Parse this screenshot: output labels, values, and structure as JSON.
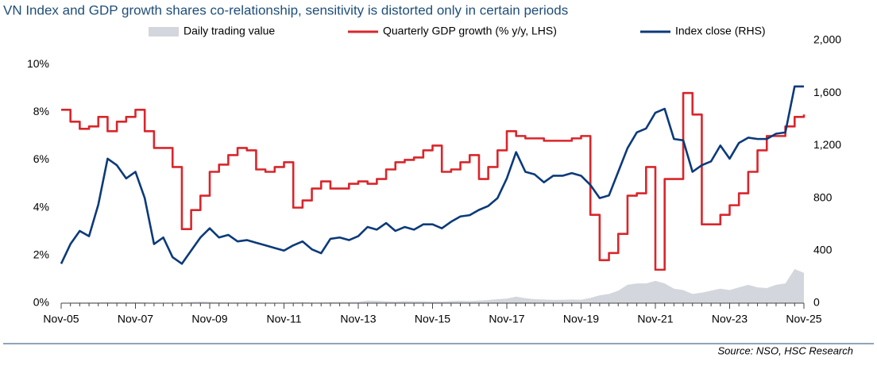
{
  "chart_data": {
    "type": "line",
    "title": "VN Index and GDP growth shares co-relationship, sensitivity is distorted only in certain periods",
    "source": "Source: NSO, HSC Research",
    "x": [
      "2005-11",
      "2006-02",
      "2006-05",
      "2006-08",
      "2006-11",
      "2007-02",
      "2007-05",
      "2007-08",
      "2007-11",
      "2008-02",
      "2008-05",
      "2008-08",
      "2008-11",
      "2009-02",
      "2009-05",
      "2009-08",
      "2009-11",
      "2010-02",
      "2010-05",
      "2010-08",
      "2010-11",
      "2011-02",
      "2011-05",
      "2011-08",
      "2011-11",
      "2012-02",
      "2012-05",
      "2012-08",
      "2012-11",
      "2013-02",
      "2013-05",
      "2013-08",
      "2013-11",
      "2014-02",
      "2014-05",
      "2014-08",
      "2014-11",
      "2015-02",
      "2015-05",
      "2015-08",
      "2015-11",
      "2016-02",
      "2016-05",
      "2016-08",
      "2016-11",
      "2017-02",
      "2017-05",
      "2017-08",
      "2017-11",
      "2018-02",
      "2018-05",
      "2018-08",
      "2018-11",
      "2019-02",
      "2019-05",
      "2019-08",
      "2019-11",
      "2020-02",
      "2020-05",
      "2020-08",
      "2020-11",
      "2021-02",
      "2021-05",
      "2021-08",
      "2021-11",
      "2022-02",
      "2022-05",
      "2022-08",
      "2022-11",
      "2023-02",
      "2023-05",
      "2023-08",
      "2023-11",
      "2024-02",
      "2024-05",
      "2024-08",
      "2024-11",
      "2025-02",
      "2025-05",
      "2025-08",
      "2025-11"
    ],
    "xlim": [
      "2005-11",
      "2025-11"
    ],
    "xticks": [
      {
        "value": "2005-11",
        "label": "Nov-05"
      },
      {
        "value": "2007-11",
        "label": "Nov-07"
      },
      {
        "value": "2009-11",
        "label": "Nov-09"
      },
      {
        "value": "2011-11",
        "label": "Nov-11"
      },
      {
        "value": "2013-11",
        "label": "Nov-13"
      },
      {
        "value": "2015-11",
        "label": "Nov-15"
      },
      {
        "value": "2017-11",
        "label": "Nov-17"
      },
      {
        "value": "2019-11",
        "label": "Nov-19"
      },
      {
        "value": "2021-11",
        "label": "Nov-21"
      },
      {
        "value": "2023-11",
        "label": "Nov-23"
      },
      {
        "value": "2025-11",
        "label": "Nov-25"
      }
    ],
    "ylim": [
      0,
      11
    ],
    "yticks": [
      {
        "value": 0,
        "label": "0%"
      },
      {
        "value": 2,
        "label": "2%"
      },
      {
        "value": 4,
        "label": "4%"
      },
      {
        "value": 6,
        "label": "6%"
      },
      {
        "value": 8,
        "label": "8%"
      },
      {
        "value": 10,
        "label": "10%"
      }
    ],
    "y2lim": [
      0,
      2000
    ],
    "y2ticks": [
      0,
      400,
      800,
      {
        "value": 1200,
        "label": "1,200"
      },
      {
        "value": 1600,
        "label": "1,600"
      },
      {
        "value": 2000,
        "label": "2,000"
      }
    ],
    "series": [
      {
        "name": "Daily trading value",
        "color": "#d3d6dc",
        "style": "area",
        "axis": "y2",
        "values": [
          3,
          4,
          5,
          5,
          6,
          8,
          8,
          7,
          8,
          6,
          4,
          4,
          4,
          5,
          10,
          12,
          10,
          7,
          6,
          5,
          5,
          4,
          4,
          4,
          4,
          6,
          8,
          5,
          5,
          8,
          9,
          9,
          10,
          20,
          18,
          14,
          12,
          16,
          14,
          14,
          12,
          12,
          16,
          18,
          16,
          20,
          24,
          30,
          35,
          50,
          38,
          30,
          28,
          25,
          26,
          28,
          26,
          40,
          60,
          70,
          95,
          140,
          150,
          150,
          170,
          150,
          110,
          100,
          70,
          80,
          95,
          110,
          100,
          120,
          140,
          120,
          115,
          140,
          150,
          260,
          230
        ]
      },
      {
        "name": "Quarterly GDP growth (% y/y, LHS)",
        "color": "#d9262b",
        "style": "step",
        "values": [
          8.1,
          7.6,
          7.3,
          7.4,
          7.8,
          7.2,
          7.6,
          7.8,
          8.1,
          7.2,
          6.5,
          6.5,
          5.7,
          3.1,
          3.9,
          4.5,
          5.5,
          5.8,
          6.2,
          6.5,
          6.4,
          5.6,
          5.5,
          5.7,
          5.9,
          4.0,
          4.3,
          4.8,
          5.1,
          4.8,
          4.8,
          5.0,
          5.1,
          5.0,
          5.2,
          5.6,
          5.9,
          6.0,
          6.1,
          6.4,
          6.6,
          5.5,
          5.6,
          5.9,
          6.2,
          5.2,
          5.7,
          6.4,
          7.2,
          7.0,
          6.9,
          6.9,
          6.8,
          6.8,
          6.8,
          6.9,
          7.0,
          3.7,
          1.8,
          2.1,
          2.9,
          4.5,
          4.6,
          5.7,
          1.4,
          5.2,
          5.2,
          8.8,
          7.9,
          3.3,
          3.3,
          3.7,
          4.1,
          4.6,
          5.5,
          6.4,
          7.0,
          7.0,
          7.4,
          7.8,
          7.9
        ]
      },
      {
        "name": "Index close (RHS)",
        "color": "#0b3a7a",
        "style": "line",
        "axis": "y2",
        "values": [
          300,
          450,
          550,
          510,
          750,
          1100,
          1050,
          950,
          1000,
          800,
          450,
          500,
          350,
          300,
          400,
          500,
          570,
          500,
          520,
          470,
          480,
          460,
          440,
          420,
          400,
          440,
          470,
          410,
          380,
          490,
          500,
          480,
          510,
          580,
          560,
          610,
          550,
          580,
          560,
          600,
          600,
          570,
          620,
          660,
          670,
          710,
          740,
          800,
          950,
          1150,
          1000,
          980,
          920,
          970,
          970,
          990,
          970,
          900,
          800,
          820,
          1000,
          1180,
          1300,
          1330,
          1450,
          1480,
          1250,
          1240,
          1000,
          1050,
          1080,
          1200,
          1100,
          1220,
          1260,
          1250,
          1250,
          1290,
          1300,
          1650,
          1650
        ]
      }
    ]
  }
}
